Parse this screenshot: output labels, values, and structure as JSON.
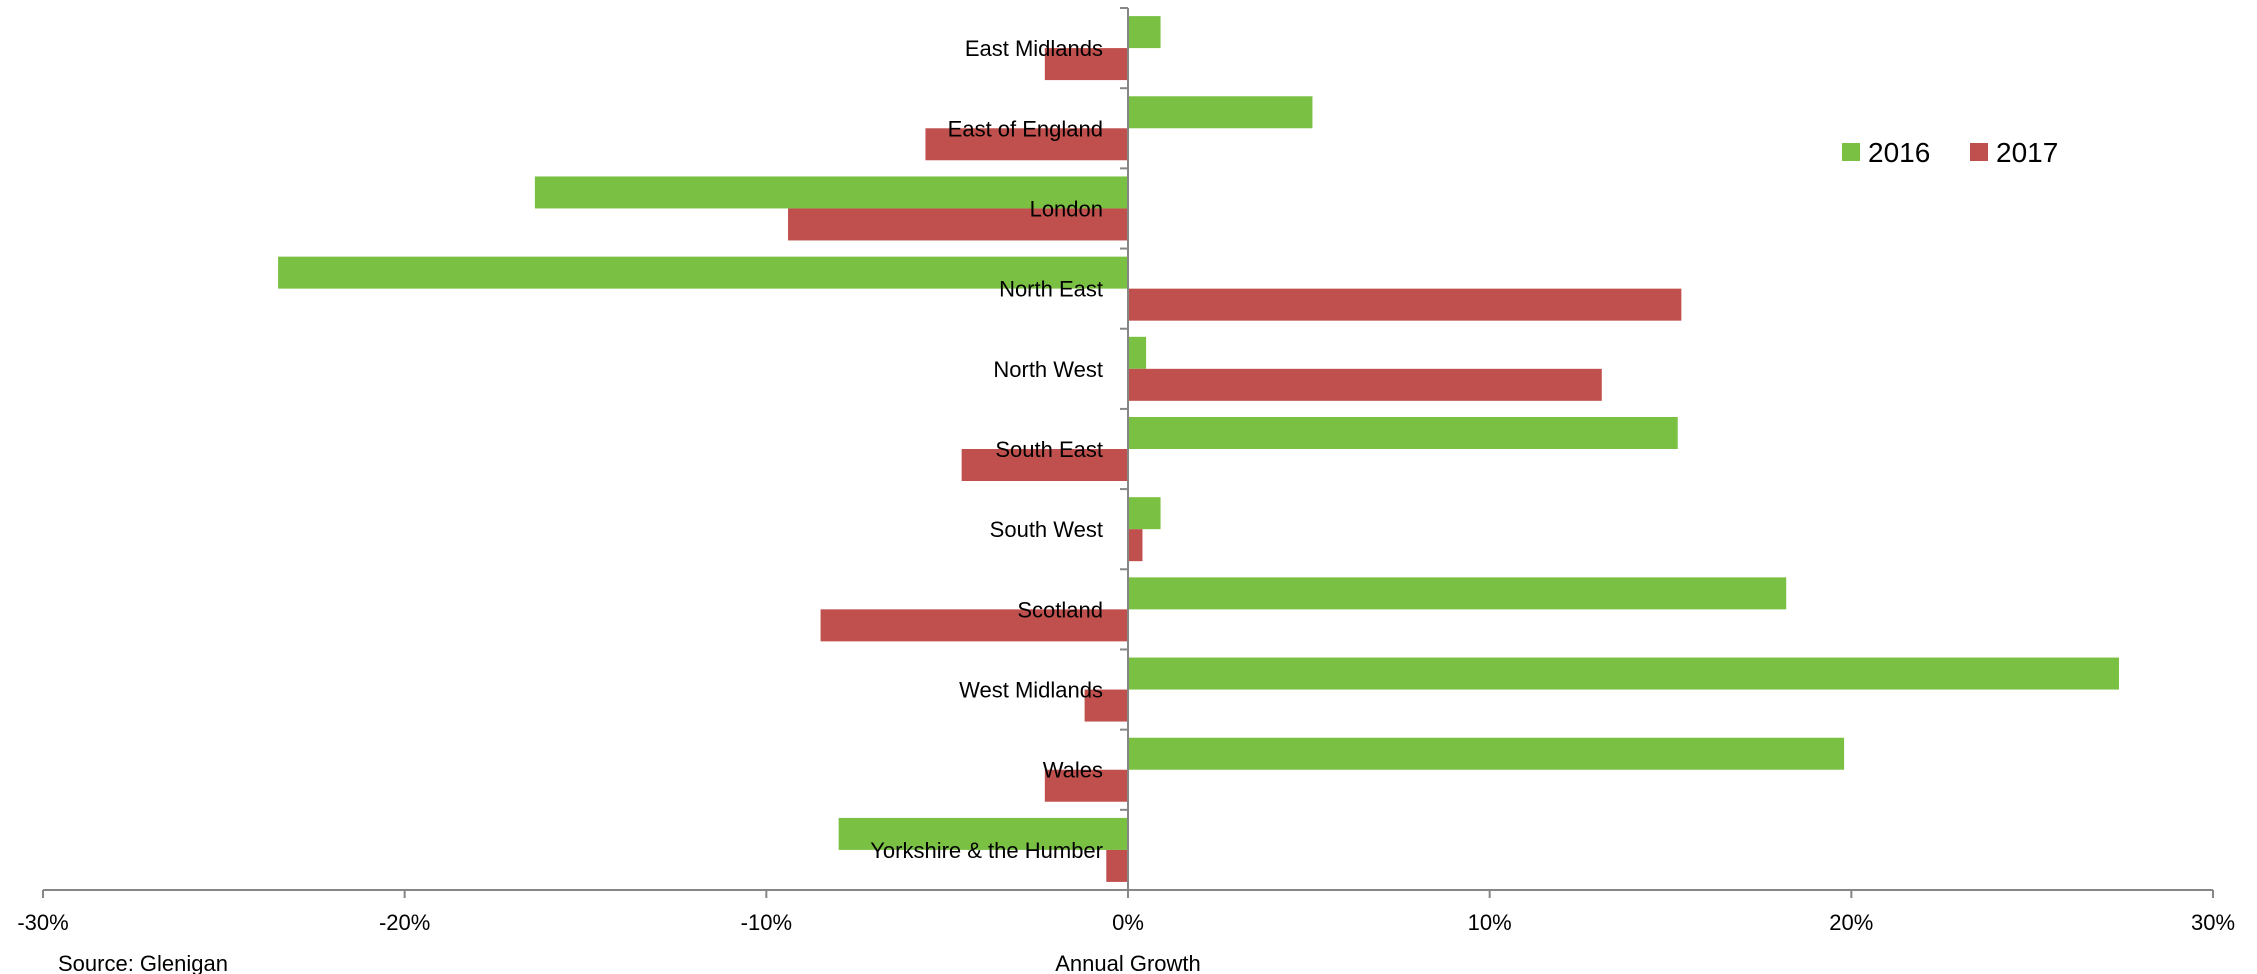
{
  "chart_data": {
    "type": "bar",
    "orientation": "horizontal",
    "categories": [
      "East Midlands",
      "East of England",
      "London",
      "North East",
      "North West",
      "South East",
      "South West",
      "Scotland",
      "West Midlands",
      "Wales",
      "Yorkshire & the Humber"
    ],
    "series": [
      {
        "name": "2016",
        "color": "#7ac143",
        "values": [
          0.9,
          5.1,
          -16.4,
          -23.5,
          0.5,
          15.2,
          0.9,
          18.2,
          27.4,
          19.8,
          -8.0
        ]
      },
      {
        "name": "2017",
        "color": "#c0504d",
        "values": [
          -2.3,
          -5.6,
          -9.4,
          15.3,
          13.1,
          -4.6,
          0.4,
          -8.5,
          -1.2,
          -2.3,
          -0.6
        ]
      }
    ],
    "xlim": [
      -30,
      30
    ],
    "xticks": [
      -30,
      -20,
      -10,
      0,
      10,
      20,
      30
    ],
    "xtick_labels": [
      "-30%",
      "-20%",
      "-10%",
      "0%",
      "10%",
      "20%",
      "30%"
    ],
    "xlabel": "Annual Growth",
    "source": "Source: Glenigan",
    "legend_position": "top-right",
    "grid": false
  }
}
